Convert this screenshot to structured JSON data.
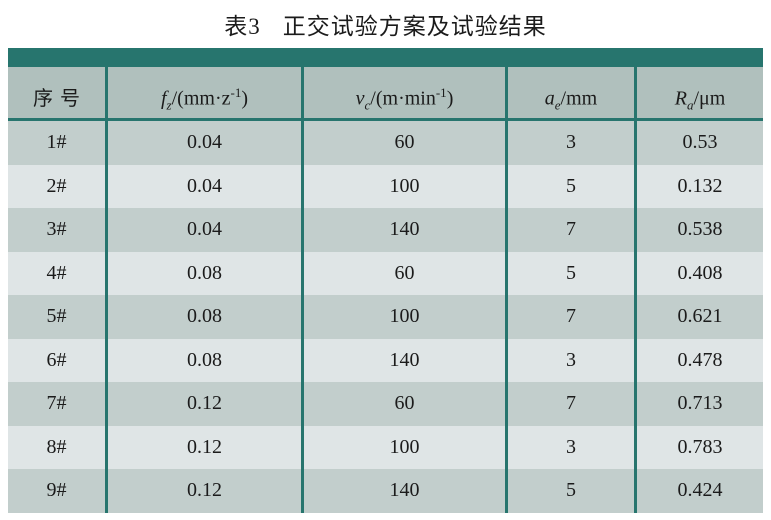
{
  "colors": {
    "teal": "#27756e",
    "header_bg": "#b0c0bd",
    "row_odd_bg": "#c2cecc",
    "row_even_bg": "#dfe5e6",
    "text": "#1b1b1b"
  },
  "caption": {
    "label": "表3",
    "title": "正交试验方案及试验结果"
  },
  "table": {
    "columns": [
      {
        "var": "序号",
        "sub": "",
        "pre": "",
        "sup": "",
        "post": "",
        "italic": false
      },
      {
        "var": "f",
        "sub": "z",
        "pre": "/(mm·z",
        "sup": "-1",
        "post": ")",
        "italic": true
      },
      {
        "var": "v",
        "sub": "c",
        "pre": "/(m·min",
        "sup": "-1",
        "post": ")",
        "italic": true
      },
      {
        "var": "a",
        "sub": "e",
        "pre": "/mm",
        "sup": "",
        "post": "",
        "italic": true
      },
      {
        "var": "R",
        "sub": "a",
        "pre": "/μm",
        "sup": "",
        "post": "",
        "italic": true
      }
    ],
    "rows": [
      [
        "1#",
        "0.04",
        "60",
        "3",
        "0.53"
      ],
      [
        "2#",
        "0.04",
        "100",
        "5",
        "0.132"
      ],
      [
        "3#",
        "0.04",
        "140",
        "7",
        "0.538"
      ],
      [
        "4#",
        "0.08",
        "60",
        "5",
        "0.408"
      ],
      [
        "5#",
        "0.08",
        "100",
        "7",
        "0.621"
      ],
      [
        "6#",
        "0.08",
        "140",
        "3",
        "0.478"
      ],
      [
        "7#",
        "0.12",
        "60",
        "7",
        "0.713"
      ],
      [
        "8#",
        "0.12",
        "100",
        "3",
        "0.783"
      ],
      [
        "9#",
        "0.12",
        "140",
        "5",
        "0.424"
      ]
    ]
  }
}
